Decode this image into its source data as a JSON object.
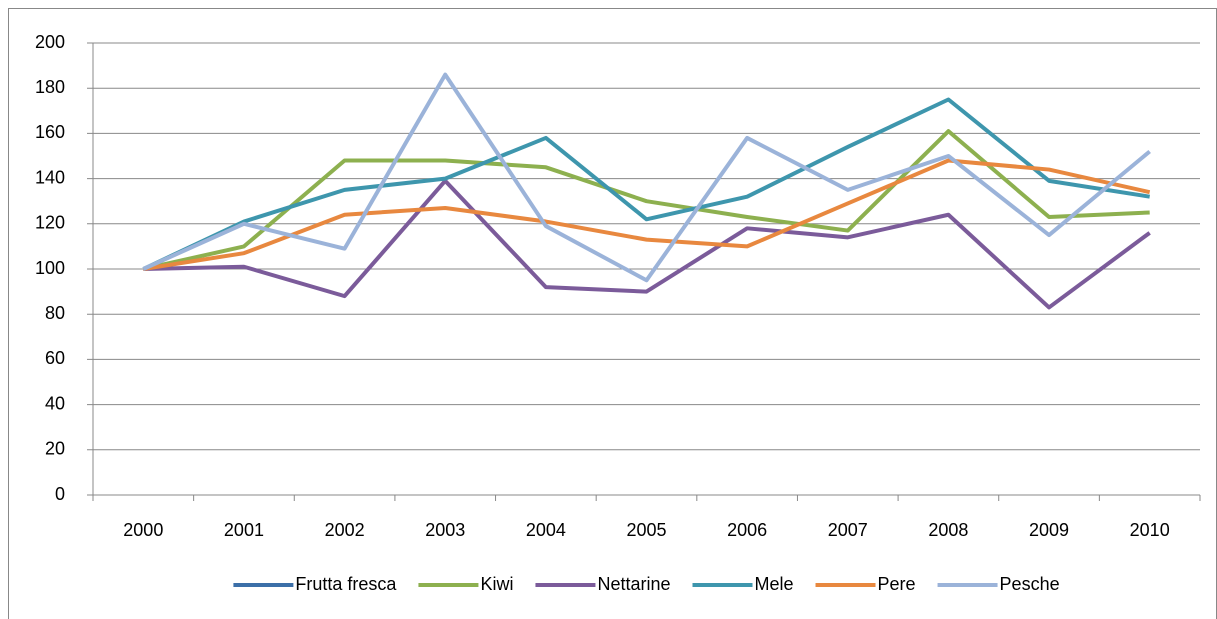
{
  "chart_data": {
    "type": "line",
    "categories": [
      "2000",
      "2001",
      "2002",
      "2003",
      "2004",
      "2005",
      "2006",
      "2007",
      "2008",
      "2009",
      "2010"
    ],
    "series": [
      {
        "name": "Frutta fresca",
        "color": "#3c6fa8",
        "values": [
          null,
          null,
          null,
          null,
          null,
          null,
          null,
          null,
          null,
          null,
          null
        ]
      },
      {
        "name": "Kiwi",
        "color": "#8db04f",
        "values": [
          100,
          110,
          148,
          148,
          145,
          130,
          123,
          117,
          161,
          123,
          125
        ]
      },
      {
        "name": "Nettarine",
        "color": "#7b5b9a",
        "values": [
          100,
          101,
          88,
          139,
          92,
          90,
          118,
          114,
          124,
          83,
          116
        ]
      },
      {
        "name": "Mele",
        "color": "#3e96ad",
        "values": [
          100,
          121,
          135,
          140,
          158,
          122,
          132,
          154,
          175,
          139,
          132
        ]
      },
      {
        "name": "Pere",
        "color": "#e8883f",
        "values": [
          100,
          107,
          124,
          127,
          121,
          113,
          110,
          129,
          148,
          144,
          134
        ]
      },
      {
        "name": "Pesche",
        "color": "#9bb3d9",
        "values": [
          100,
          120,
          109,
          186,
          119,
          95,
          158,
          135,
          150,
          115,
          152
        ]
      }
    ],
    "ylim": [
      0,
      200
    ],
    "yticks": [
      0,
      20,
      40,
      60,
      80,
      100,
      120,
      140,
      160,
      180,
      200
    ],
    "grid": true,
    "legend": "bottom"
  }
}
